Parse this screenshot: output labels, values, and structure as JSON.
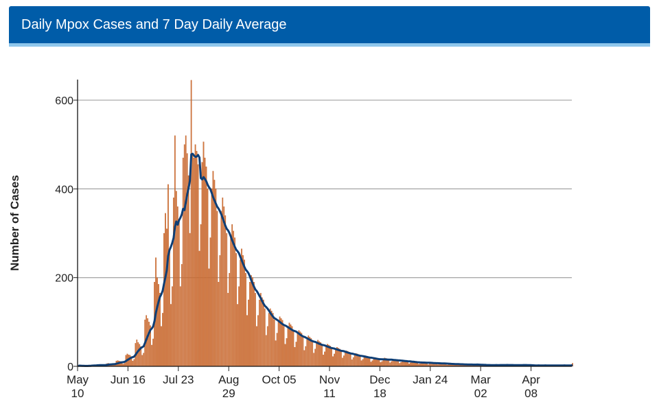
{
  "header": {
    "title": "Daily Mpox Cases and 7 Day Daily Average"
  },
  "chart_data": {
    "type": "bar",
    "ylabel": "Number of Cases",
    "xlabel": "",
    "ylim": [
      0,
      650
    ],
    "yticks": [
      0,
      200,
      400,
      600
    ],
    "xlim": [
      "May 10",
      "May 08"
    ],
    "xticks": [
      {
        "line1": "May",
        "line2": "10"
      },
      {
        "line1": "Jun 16",
        "line2": ""
      },
      {
        "line1": "Jul 23",
        "line2": ""
      },
      {
        "line1": "Aug",
        "line2": "29"
      },
      {
        "line1": "Oct 05",
        "line2": ""
      },
      {
        "line1": "Nov",
        "line2": "11"
      },
      {
        "line1": "Dec",
        "line2": "18"
      },
      {
        "line1": "Jan 24",
        "line2": ""
      },
      {
        "line1": "Mar",
        "line2": "02"
      },
      {
        "line1": "Apr",
        "line2": "08"
      }
    ],
    "xtick_interval_days": 37,
    "grid": "horizontal",
    "series": [
      {
        "type": "bar",
        "color": "#d4773c",
        "edge_color": "#b3501a",
        "interval": "daily",
        "values": [
          1,
          2,
          1,
          1,
          1,
          0,
          0,
          2,
          3,
          2,
          3,
          2,
          1,
          1,
          4,
          4,
          3,
          4,
          3,
          1,
          2,
          6,
          7,
          6,
          5,
          5,
          3,
          3,
          12,
          13,
          12,
          11,
          10,
          5,
          7,
          25,
          28,
          26,
          25,
          22,
          12,
          16,
          52,
          60,
          54,
          50,
          45,
          25,
          30,
          105,
          115,
          108,
          100,
          92,
          48,
          62,
          190,
          245,
          200,
          185,
          165,
          90,
          120,
          300,
          345,
          310,
          410,
          260,
          140,
          180,
          380,
          520,
          395,
          360,
          330,
          180,
          230,
          470,
          500,
          520,
          480,
          430,
          300,
          645,
          480,
          470,
          500,
          485,
          455,
          260,
          320,
          460,
          506,
          470,
          450,
          400,
          220,
          290,
          400,
          440,
          420,
          400,
          350,
          190,
          250,
          350,
          380,
          360,
          340,
          300,
          165,
          210,
          295,
          320,
          305,
          290,
          255,
          140,
          180,
          240,
          265,
          250,
          240,
          210,
          115,
          150,
          190,
          205,
          200,
          190,
          165,
          90,
          115,
          150,
          165,
          155,
          150,
          130,
          70,
          90,
          120,
          130,
          125,
          120,
          105,
          58,
          75,
          105,
          112,
          108,
          104,
          90,
          50,
          63,
          90,
          98,
          94,
          90,
          78,
          43,
          55,
          75,
          81,
          78,
          75,
          65,
          36,
          45,
          63,
          69,
          66,
          63,
          55,
          30,
          39,
          54,
          59,
          56,
          54,
          47,
          26,
          33,
          46,
          50,
          48,
          46,
          40,
          22,
          28,
          39,
          43,
          41,
          39,
          34,
          19,
          24,
          32,
          35,
          34,
          32,
          28,
          15,
          20,
          26,
          29,
          28,
          26,
          23,
          13,
          16,
          22,
          24,
          23,
          22,
          19,
          10,
          13,
          18,
          20,
          19,
          18,
          16,
          9,
          11,
          17,
          19,
          18,
          17,
          15,
          8,
          11,
          15,
          16,
          16,
          15,
          13,
          7,
          9,
          13,
          14,
          13,
          13,
          11,
          6,
          8,
          10,
          11,
          11,
          10,
          9,
          5,
          6,
          9,
          10,
          10,
          9,
          8,
          4,
          6,
          8,
          9,
          8,
          8,
          7,
          4,
          5,
          7,
          8,
          7,
          7,
          6,
          3,
          4,
          6,
          6,
          6,
          6,
          5,
          3,
          3,
          5,
          5,
          5,
          5,
          4,
          2,
          2,
          5,
          5,
          5,
          4,
          4,
          2,
          3,
          4,
          4,
          4,
          3,
          3,
          2,
          1,
          4,
          4,
          3,
          3,
          3,
          2,
          2,
          3,
          4,
          4,
          3,
          3,
          2,
          2,
          4,
          3,
          4,
          3,
          3,
          1,
          2,
          3,
          4,
          3,
          4,
          3,
          2,
          2,
          3,
          3,
          2,
          3,
          2,
          1,
          1,
          2,
          3,
          3,
          2,
          2,
          1,
          1,
          3,
          2,
          3,
          2,
          2,
          1,
          1,
          2,
          3,
          2,
          3,
          2,
          1,
          1,
          3,
          2,
          2,
          3,
          2,
          1,
          7
        ]
      },
      {
        "type": "line",
        "color": "#0e3e75",
        "derived": "7 day rolling average of daily cases"
      }
    ]
  }
}
